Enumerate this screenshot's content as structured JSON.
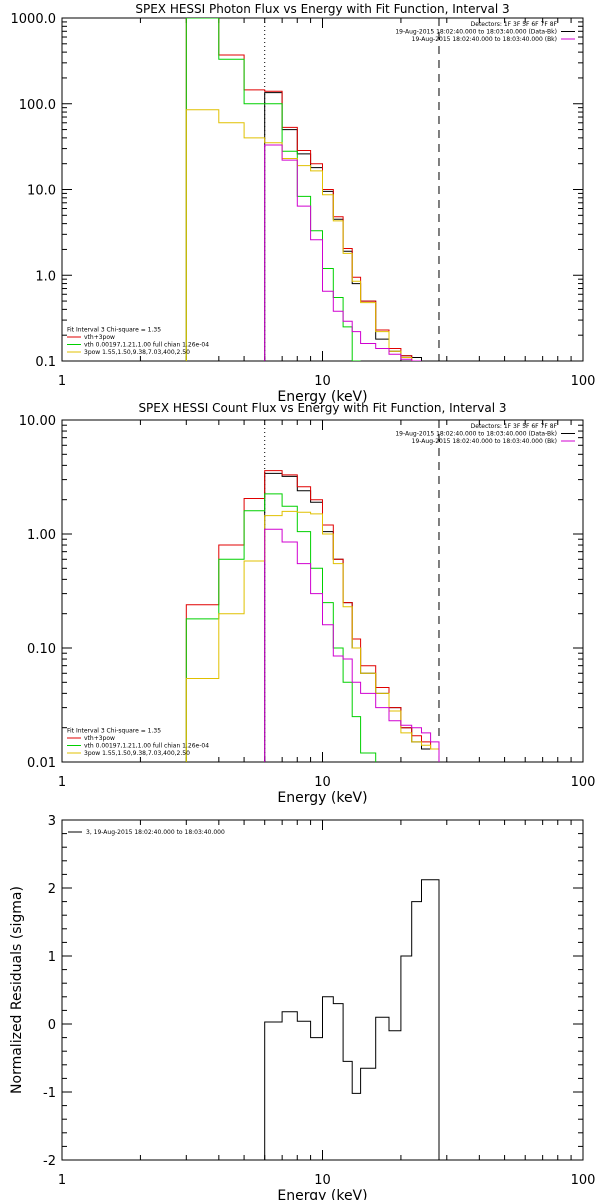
{
  "chart_data": [
    {
      "type": "line",
      "title": "SPEX HESSI Photon Flux vs Energy with Fit Function, Interval 3",
      "xlabel": "Energy (keV)",
      "ylabel": "",
      "xscale": "log",
      "yscale": "log",
      "xlim": [
        1,
        100
      ],
      "ylim": [
        0.1,
        1000
      ],
      "xticks": [
        "1",
        "10",
        "100"
      ],
      "yticks": [
        "0.1",
        "1.0",
        "10.0",
        "100.0",
        "1000.0"
      ],
      "vlines": {
        "dotted": 6.0,
        "dashed": 28.0
      },
      "legend_right": {
        "position": "top-right",
        "lines": [
          {
            "text": "Detectors: 1F 3F 5F 6F 7F 8F",
            "color": ""
          },
          {
            "text": "19-Aug-2015 18:02:40.000 to 18:03:40.000 (Data-Bk)",
            "color": "#000000"
          },
          {
            "text": "19-Aug-2015 18:02:40.000 to 18:03:40.000 (Bk)",
            "color": "#d000d0"
          }
        ]
      },
      "legend_left": {
        "position": "bottom-left",
        "lines": [
          {
            "text": "Fit Interval 3   Chi-square = 1.35",
            "color": ""
          },
          {
            "text": "vth+3pow",
            "color": "#e00000"
          },
          {
            "text": "vth 0.00197,1.21,1.00  full chian 1.26e-04",
            "color": "#00d000"
          },
          {
            "text": "3pow 1.55,1.50,9.38,7.03,400,2.50",
            "color": "#e0c000"
          }
        ]
      },
      "edges": [
        3,
        4,
        5,
        6,
        7,
        8,
        9,
        10,
        11,
        12,
        13,
        14,
        16,
        18,
        20,
        22,
        24,
        26,
        28
      ],
      "series": [
        {
          "name": "Data-Bk",
          "color": "#000000",
          "values": [
            null,
            null,
            null,
            135,
            50,
            26,
            18,
            9.5,
            4.5,
            1.9,
            0.8,
            0.5,
            0.18,
            0.13,
            0.115,
            0.11,
            null,
            null
          ]
        },
        {
          "name": "vth+3pow",
          "color": "#e00000",
          "values": [
            1000,
            370,
            145,
            140,
            53,
            28.5,
            20,
            10,
            4.8,
            2.05,
            0.95,
            0.5,
            0.23,
            0.14,
            0.115,
            0.1,
            null,
            null
          ]
        },
        {
          "name": "vth",
          "color": "#00d000",
          "values": [
            1000,
            330,
            100,
            100,
            28,
            8.3,
            3.3,
            1.2,
            0.55,
            0.25,
            0.1,
            null,
            null,
            null,
            null,
            null,
            null,
            null
          ]
        },
        {
          "name": "3pow",
          "color": "#e0c000",
          "values": [
            85,
            60,
            40,
            35,
            23,
            19,
            16.5,
            8.7,
            4.3,
            1.8,
            0.85,
            0.48,
            0.22,
            0.13,
            0.11,
            0.1,
            null,
            null
          ]
        },
        {
          "name": "Bk",
          "color": "#d000d0",
          "values": [
            null,
            null,
            null,
            33,
            22,
            6.4,
            2.6,
            0.65,
            0.38,
            0.29,
            0.22,
            0.16,
            0.14,
            0.12,
            0.105,
            0.1,
            null,
            null
          ]
        }
      ]
    },
    {
      "type": "line",
      "title": "SPEX HESSI Count Flux vs Energy with Fit Function, Interval 3",
      "xlabel": "Energy (keV)",
      "ylabel": "",
      "xscale": "log",
      "yscale": "log",
      "xlim": [
        1,
        100
      ],
      "ylim": [
        0.01,
        10
      ],
      "xticks": [
        "1",
        "10",
        "100"
      ],
      "yticks": [
        "0.01",
        "0.10",
        "1.00",
        "10.00"
      ],
      "vlines": {
        "dotted": 6.0,
        "dashed": 28.0
      },
      "legend_right": {
        "position": "top-right",
        "lines": [
          {
            "text": "Detectors: 1F 3F 5F 6F 7F 8F",
            "color": ""
          },
          {
            "text": "19-Aug-2015 18:02:40.000 to 18:03:40.000 (Data-Bk)",
            "color": "#000000"
          },
          {
            "text": "19-Aug-2015 18:02:40.000 to 18:03:40.000 (Bk)",
            "color": "#d000d0"
          }
        ]
      },
      "legend_left": {
        "position": "bottom-left",
        "lines": [
          {
            "text": "Fit Interval 3   Chi-square = 1.35",
            "color": ""
          },
          {
            "text": "vth+3pow",
            "color": "#e00000"
          },
          {
            "text": "vth 0.00197,1.21,1.00  full chian 1.26e-04",
            "color": "#00d000"
          },
          {
            "text": "3pow 1.55,1.50,9.38,7.03,400,2.50",
            "color": "#e0c000"
          }
        ]
      },
      "edges": [
        3,
        4,
        5,
        6,
        7,
        8,
        9,
        10,
        11,
        12,
        13,
        14,
        16,
        18,
        20,
        22,
        24,
        26,
        28
      ],
      "series": [
        {
          "name": "Data-Bk",
          "color": "#000000",
          "values": [
            null,
            null,
            null,
            3.4,
            3.2,
            2.4,
            1.9,
            1.05,
            0.6,
            0.25,
            0.1,
            0.06,
            0.04,
            0.03,
            0.02,
            0.015,
            0.013,
            0.013
          ]
        },
        {
          "name": "vth+3pow",
          "color": "#e00000",
          "values": [
            0.24,
            0.8,
            2.05,
            3.6,
            3.3,
            2.6,
            2.0,
            1.2,
            0.6,
            0.25,
            0.12,
            0.07,
            0.045,
            0.03,
            0.02,
            0.017,
            0.015,
            0.013
          ]
        },
        {
          "name": "vth",
          "color": "#00d000",
          "values": [
            0.18,
            0.6,
            1.6,
            2.25,
            1.75,
            1.05,
            0.5,
            0.25,
            0.1,
            0.05,
            0.025,
            0.012,
            null,
            null,
            null,
            null,
            null,
            null
          ]
        },
        {
          "name": "3pow",
          "color": "#e0c000",
          "values": [
            0.054,
            0.2,
            0.58,
            1.45,
            1.58,
            1.55,
            1.5,
            1.0,
            0.55,
            0.23,
            0.1,
            0.06,
            0.04,
            0.028,
            0.018,
            0.015,
            0.014,
            0.013
          ]
        },
        {
          "name": "Bk",
          "color": "#d000d0",
          "values": [
            null,
            null,
            null,
            1.1,
            0.85,
            0.55,
            0.3,
            0.16,
            0.085,
            0.08,
            0.05,
            0.04,
            0.03,
            0.023,
            0.021,
            0.02,
            0.018,
            0.015
          ]
        }
      ]
    },
    {
      "type": "line",
      "title": "",
      "xlabel": "Energy (keV)",
      "ylabel": "Normalized Residuals (sigma)",
      "xscale": "log",
      "yscale": "linear",
      "xlim": [
        1,
        100
      ],
      "ylim": [
        -2,
        3
      ],
      "xticks": [
        "1",
        "10",
        "100"
      ],
      "yticks": [
        "-2",
        "-1",
        "0",
        "1",
        "2",
        "3"
      ],
      "legend": {
        "position": "top-left",
        "lines": [
          {
            "text": "3, 19-Aug-2015 18:02:40.000 to 18:03:40.000",
            "color": "#000000"
          }
        ]
      },
      "edges": [
        6,
        7,
        8,
        9,
        10,
        11,
        12,
        13,
        14,
        16,
        18,
        20,
        22,
        24,
        26,
        28
      ],
      "series": [
        {
          "name": "",
          "color": "#000000",
          "values": [
            0.03,
            0.18,
            0.04,
            -0.2,
            0.4,
            0.3,
            -0.55,
            -1.02,
            -0.65,
            0.1,
            -0.1,
            1.0,
            1.8,
            2.12,
            2.12
          ]
        }
      ]
    }
  ]
}
